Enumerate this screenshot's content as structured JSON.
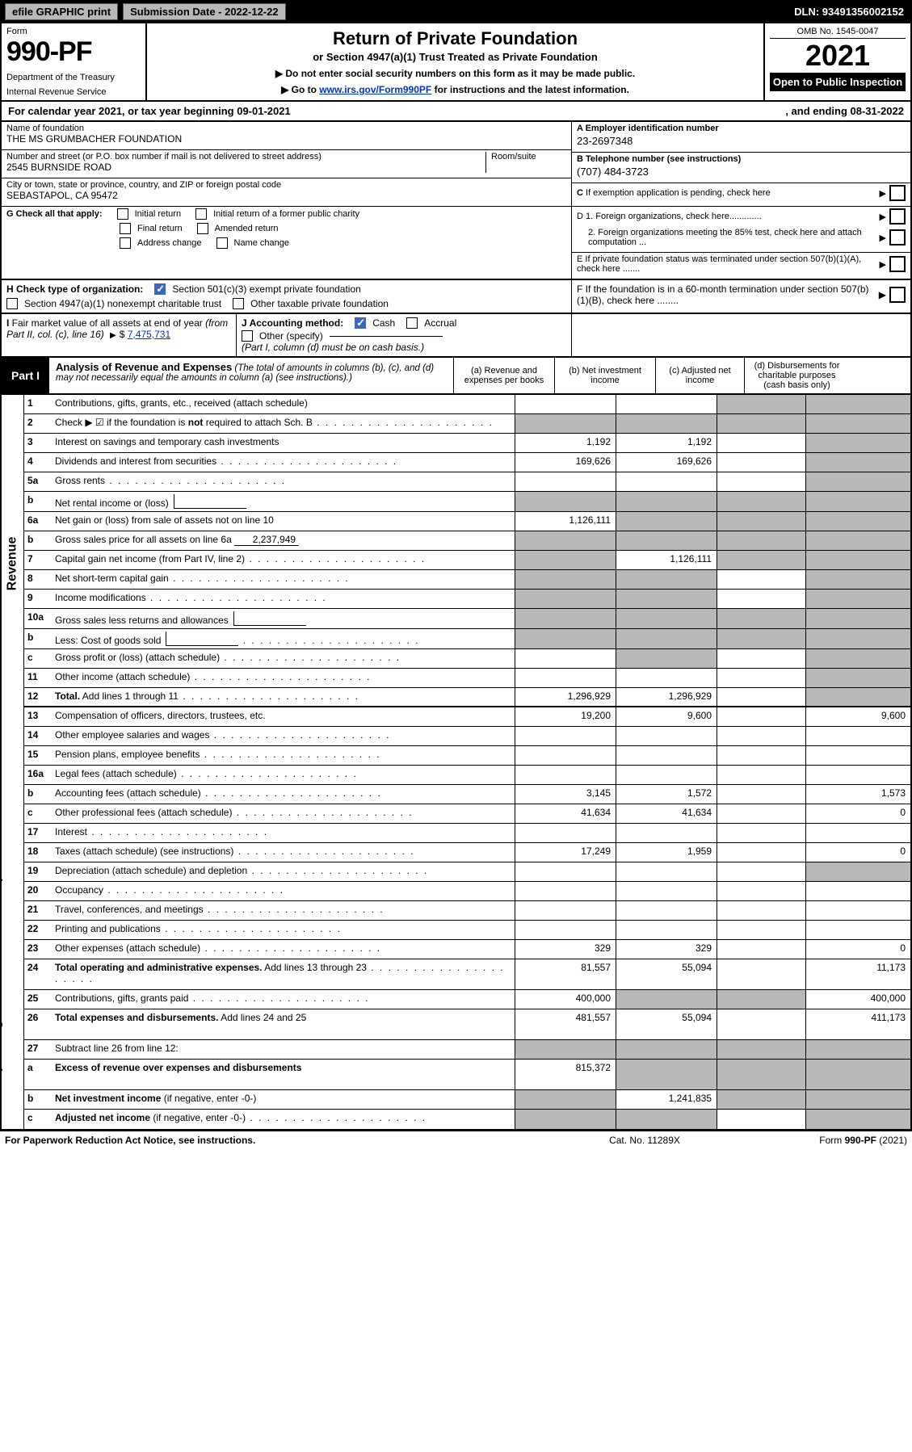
{
  "colors": {
    "black": "#000000",
    "white": "#ffffff",
    "grey_fill": "#b8b8b8",
    "link_blue": "#0033cc",
    "check_blue": "#3a66c4"
  },
  "topbar": {
    "efile_btn": "efile GRAPHIC print",
    "submission": "Submission Date - 2022-12-22",
    "dln": "DLN: 93491356002152"
  },
  "header": {
    "form_label": "Form",
    "form_number": "990-PF",
    "dept": "Department of the Treasury",
    "irs": "Internal Revenue Service",
    "title": "Return of Private Foundation",
    "subtitle": "or Section 4947(a)(1) Trust Treated as Private Foundation",
    "note1": "▶ Do not enter social security numbers on this form as it may be made public.",
    "note2_prefix": "▶ Go to ",
    "note2_link": "www.irs.gov/Form990PF",
    "note2_suffix": " for instructions and the latest information.",
    "omb": "OMB No. 1545-0047",
    "year": "2021",
    "inspection": "Open to Public Inspection"
  },
  "calyear": {
    "text_left": "For calendar year 2021, or tax year beginning 09-01-2021",
    "text_right": ", and ending 08-31-2022"
  },
  "info": {
    "name_label": "Name of foundation",
    "name": "THE MS GRUMBACHER FOUNDATION",
    "addr_label": "Number and street (or P.O. box number if mail is not delivered to street address)",
    "addr": "2545 BURNSIDE ROAD",
    "room_label": "Room/suite",
    "city_label": "City or town, state or province, country, and ZIP or foreign postal code",
    "city": "SEBASTAPOL, CA  95472",
    "a_label": "A Employer identification number",
    "a_val": "23-2697348",
    "b_label": "B Telephone number (see instructions)",
    "b_val": "(707) 484-3723",
    "c_label": "C If exemption application is pending, check here",
    "d1_label": "D 1. Foreign organizations, check here.............",
    "d2_label": "2. Foreign organizations meeting the 85% test, check here and attach computation ...",
    "e_label": "E  If private foundation status was terminated under section 507(b)(1)(A), check here .......",
    "f_label": "F  If the foundation is in a 60-month termination under section 507(b)(1)(B), check here ........"
  },
  "g": {
    "label": "G Check all that apply:",
    "initial": "Initial return",
    "initial_former": "Initial return of a former public charity",
    "final": "Final return",
    "amended": "Amended return",
    "addr_change": "Address change",
    "name_change": "Name change"
  },
  "h": {
    "label": "H Check type of organization:",
    "opt1": "Section 501(c)(3) exempt private foundation",
    "opt2": "Section 4947(a)(1) nonexempt charitable trust",
    "opt3": "Other taxable private foundation"
  },
  "i": {
    "label": "I Fair market value of all assets at end of year (from Part II, col. (c), line 16)",
    "arrow": "▶$",
    "value": "7,475,731"
  },
  "j": {
    "label": "J Accounting method:",
    "cash": "Cash",
    "accrual": "Accrual",
    "other": "Other (specify)",
    "note": "(Part I, column (d) must be on cash basis.)"
  },
  "part1": {
    "tag": "Part I",
    "desc_bold": "Analysis of Revenue and Expenses",
    "desc_italic": " (The total of amounts in columns (b), (c), and (d) may not necessarily equal the amounts in column (a) (see instructions).)",
    "col_a": "(a) Revenue and expenses per books",
    "col_b": "(b) Net investment income",
    "col_c": "(c) Adjusted net income",
    "col_d": "(d) Disbursements for charitable purposes (cash basis only)"
  },
  "side_labels": {
    "revenue": "Revenue",
    "expenses": "Operating and Administrative Expenses"
  },
  "rows": [
    {
      "n": "1",
      "label": "Contributions, gifts, grants, etc., received (attach schedule)",
      "a": "",
      "b": "",
      "c": "grey",
      "d": "grey"
    },
    {
      "n": "2",
      "label": "Check ▶ ☑ if the foundation is <b>not</b> required to attach Sch. B",
      "dots": true,
      "a": "grey",
      "b": "grey",
      "c": "grey",
      "d": "grey"
    },
    {
      "n": "3",
      "label": "Interest on savings and temporary cash investments",
      "a": "1,192",
      "b": "1,192",
      "c": "",
      "d": "grey"
    },
    {
      "n": "4",
      "label": "Dividends and interest from securities",
      "dots": true,
      "a": "169,626",
      "b": "169,626",
      "c": "",
      "d": "grey"
    },
    {
      "n": "5a",
      "label": "Gross rents",
      "dots": true,
      "a": "",
      "b": "",
      "c": "",
      "d": "grey"
    },
    {
      "n": "b",
      "label": "Net rental income or (loss)",
      "mini": true,
      "a": "grey",
      "b": "grey",
      "c": "grey",
      "d": "grey"
    },
    {
      "n": "6a",
      "label": "Net gain or (loss) from sale of assets not on line 10",
      "a": "1,126,111",
      "b": "grey",
      "c": "grey",
      "d": "grey"
    },
    {
      "n": "b",
      "label": "Gross sales price for all assets on line 6a",
      "inline_val": "2,237,949",
      "a": "grey",
      "b": "grey",
      "c": "grey",
      "d": "grey"
    },
    {
      "n": "7",
      "label": "Capital gain net income (from Part IV, line 2)",
      "dots": true,
      "a": "grey",
      "b": "1,126,111",
      "c": "grey",
      "d": "grey"
    },
    {
      "n": "8",
      "label": "Net short-term capital gain",
      "dots": true,
      "a": "grey",
      "b": "grey",
      "c": "",
      "d": "grey"
    },
    {
      "n": "9",
      "label": "Income modifications",
      "dots": true,
      "a": "grey",
      "b": "grey",
      "c": "",
      "d": "grey"
    },
    {
      "n": "10a",
      "label": "Gross sales less returns and allowances",
      "mini": true,
      "a": "grey",
      "b": "grey",
      "c": "grey",
      "d": "grey"
    },
    {
      "n": "b",
      "label": "Less: Cost of goods sold",
      "dots": true,
      "mini": true,
      "a": "grey",
      "b": "grey",
      "c": "grey",
      "d": "grey"
    },
    {
      "n": "c",
      "label": "Gross profit or (loss) (attach schedule)",
      "dots": true,
      "a": "",
      "b": "grey",
      "c": "",
      "d": "grey"
    },
    {
      "n": "11",
      "label": "Other income (attach schedule)",
      "dots": true,
      "a": "",
      "b": "",
      "c": "",
      "d": "grey"
    },
    {
      "n": "12",
      "label": "<b>Total.</b> Add lines 1 through 11",
      "dots": true,
      "a": "1,296,929",
      "b": "1,296,929",
      "c": "",
      "d": "grey"
    },
    {
      "n": "13",
      "label": "Compensation of officers, directors, trustees, etc.",
      "a": "19,200",
      "b": "9,600",
      "c": "",
      "d": "9,600",
      "sect": "exp"
    },
    {
      "n": "14",
      "label": "Other employee salaries and wages",
      "dots": true,
      "a": "",
      "b": "",
      "c": "",
      "d": ""
    },
    {
      "n": "15",
      "label": "Pension plans, employee benefits",
      "dots": true,
      "a": "",
      "b": "",
      "c": "",
      "d": ""
    },
    {
      "n": "16a",
      "label": "Legal fees (attach schedule)",
      "dots": true,
      "a": "",
      "b": "",
      "c": "",
      "d": ""
    },
    {
      "n": "b",
      "label": "Accounting fees (attach schedule)",
      "dots": true,
      "a": "3,145",
      "b": "1,572",
      "c": "",
      "d": "1,573"
    },
    {
      "n": "c",
      "label": "Other professional fees (attach schedule)",
      "dots": true,
      "a": "41,634",
      "b": "41,634",
      "c": "",
      "d": "0"
    },
    {
      "n": "17",
      "label": "Interest",
      "dots": true,
      "a": "",
      "b": "",
      "c": "",
      "d": ""
    },
    {
      "n": "18",
      "label": "Taxes (attach schedule) (see instructions)",
      "dots": true,
      "a": "17,249",
      "b": "1,959",
      "c": "",
      "d": "0"
    },
    {
      "n": "19",
      "label": "Depreciation (attach schedule) and depletion",
      "dots": true,
      "a": "",
      "b": "",
      "c": "",
      "d": "grey"
    },
    {
      "n": "20",
      "label": "Occupancy",
      "dots": true,
      "a": "",
      "b": "",
      "c": "",
      "d": ""
    },
    {
      "n": "21",
      "label": "Travel, conferences, and meetings",
      "dots": true,
      "a": "",
      "b": "",
      "c": "",
      "d": ""
    },
    {
      "n": "22",
      "label": "Printing and publications",
      "dots": true,
      "a": "",
      "b": "",
      "c": "",
      "d": ""
    },
    {
      "n": "23",
      "label": "Other expenses (attach schedule)",
      "dots": true,
      "a": "329",
      "b": "329",
      "c": "",
      "d": "0"
    },
    {
      "n": "24",
      "label": "<b>Total operating and administrative expenses.</b> Add lines 13 through 23",
      "dots": true,
      "a": "81,557",
      "b": "55,094",
      "c": "",
      "d": "11,173",
      "tall": true
    },
    {
      "n": "25",
      "label": "Contributions, gifts, grants paid",
      "dots": true,
      "a": "400,000",
      "b": "grey",
      "c": "grey",
      "d": "400,000"
    },
    {
      "n": "26",
      "label": "<b>Total expenses and disbursements.</b> Add lines 24 and 25",
      "a": "481,557",
      "b": "55,094",
      "c": "",
      "d": "411,173",
      "tall": true
    },
    {
      "n": "27",
      "label": "Subtract line 26 from line 12:",
      "a": "grey",
      "b": "grey",
      "c": "grey",
      "d": "grey"
    },
    {
      "n": "a",
      "label": "<b>Excess of revenue over expenses and disbursements</b>",
      "a": "815,372",
      "b": "grey",
      "c": "grey",
      "d": "grey",
      "tall": true
    },
    {
      "n": "b",
      "label": "<b>Net investment income</b> (if negative, enter -0-)",
      "a": "grey",
      "b": "1,241,835",
      "c": "grey",
      "d": "grey"
    },
    {
      "n": "c",
      "label": "<b>Adjusted net income</b> (if negative, enter -0-)",
      "dots": true,
      "a": "grey",
      "b": "grey",
      "c": "",
      "d": "grey"
    }
  ],
  "footer": {
    "left": "For Paperwork Reduction Act Notice, see instructions.",
    "center": "Cat. No. 11289X",
    "right": "Form 990-PF (2021)"
  }
}
